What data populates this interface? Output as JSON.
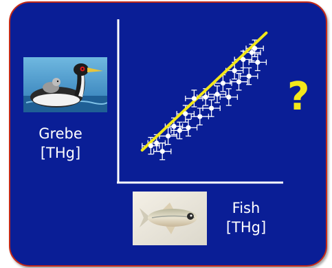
{
  "labels": {
    "grebe_name": "Grebe",
    "grebe_unit": "[THg]",
    "fish_name": "Fish",
    "fish_unit": "[THg]",
    "question": "?"
  },
  "colors": {
    "background": "#0a1e96",
    "border": "#c42a18",
    "accent_yellow": "#f3e81a",
    "text": "#ffffff"
  },
  "icons": {
    "grebe": "grebe-bird-icon",
    "fish": "fish-icon"
  },
  "chart_data": {
    "type": "scatter",
    "xlim": [
      0,
      100
    ],
    "ylim": [
      0,
      100
    ],
    "trendline": {
      "slope": 0.98,
      "intercept": 9
    },
    "points": [
      {
        "x": 14,
        "y": 20
      },
      {
        "x": 18,
        "y": 22
      },
      {
        "x": 22,
        "y": 16
      },
      {
        "x": 26,
        "y": 27
      },
      {
        "x": 30,
        "y": 34
      },
      {
        "x": 34,
        "y": 31
      },
      {
        "x": 38,
        "y": 43
      },
      {
        "x": 40,
        "y": 33
      },
      {
        "x": 44,
        "y": 54
      },
      {
        "x": 48,
        "y": 41
      },
      {
        "x": 52,
        "y": 55
      },
      {
        "x": 56,
        "y": 47
      },
      {
        "x": 60,
        "y": 57
      },
      {
        "x": 64,
        "y": 65
      },
      {
        "x": 68,
        "y": 55
      },
      {
        "x": 72,
        "y": 74
      },
      {
        "x": 75,
        "y": 66
      },
      {
        "x": 78,
        "y": 82
      },
      {
        "x": 82,
        "y": 70
      },
      {
        "x": 84,
        "y": 87
      },
      {
        "x": 88,
        "y": 80
      },
      {
        "x": 86,
        "y": 90
      }
    ],
    "x_error": 6,
    "y_error": 6
  }
}
